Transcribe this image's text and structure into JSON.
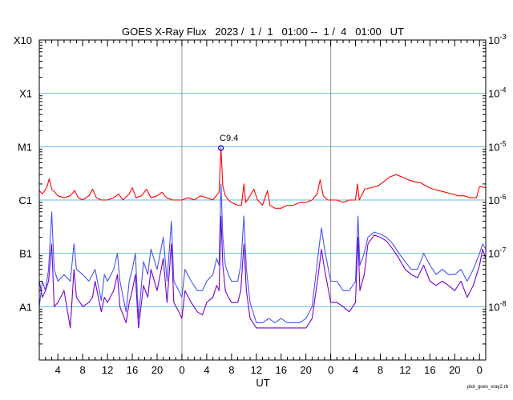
{
  "chart_data": {
    "type": "line",
    "title": "GOES X-Ray Flux   2023 /  1 /  1   01:00 --  1 /  4   01:00   UT",
    "xlabel": "UT",
    "credit": "plot_goes_xray2.rb",
    "x_range_hours": [
      0,
      72
    ],
    "x_tick_labels": [
      "4",
      "8",
      "12",
      "16",
      "20",
      "0",
      "4",
      "8",
      "12",
      "16",
      "20",
      "0",
      "4",
      "8",
      "12",
      "16",
      "20",
      "0"
    ],
    "day_boundaries_hours": [
      23,
      47
    ],
    "y_scale": "log",
    "ylim": [
      1e-09,
      0.001
    ],
    "y_left_labels": [
      {
        "label": "X10",
        "flux": 0.001
      },
      {
        "label": "X1",
        "flux": 0.0001
      },
      {
        "label": "M1",
        "flux": 1e-05
      },
      {
        "label": "C1",
        "flux": 1e-06
      },
      {
        "label": "B1",
        "flux": 1e-07
      },
      {
        "label": "A1",
        "flux": 1e-08
      }
    ],
    "y_right_labels": [
      {
        "base": "10",
        "exp": "-3",
        "flux": 0.001
      },
      {
        "base": "10",
        "exp": "-4",
        "flux": 0.0001
      },
      {
        "base": "10",
        "exp": "-5",
        "flux": 1e-05
      },
      {
        "base": "10",
        "exp": "-6",
        "flux": 1e-06
      },
      {
        "base": "10",
        "exp": "-7",
        "flux": 1e-07
      },
      {
        "base": "10",
        "exp": "-8",
        "flux": 1e-08
      }
    ],
    "peak": {
      "label": "C9.4",
      "hour": 29.3,
      "flux": 9.4e-06
    },
    "series": [
      {
        "color": "#ff0000",
        "points": [
          [
            0,
            1.5e-06
          ],
          [
            0.5,
            1.3e-06
          ],
          [
            1.2,
            1.7e-06
          ],
          [
            1.6,
            2.5e-06
          ],
          [
            2,
            1.6e-06
          ],
          [
            2.5,
            1.4e-06
          ],
          [
            3,
            1.2e-06
          ],
          [
            4,
            1.1e-06
          ],
          [
            5,
            1.2e-06
          ],
          [
            5.7,
            1.5e-06
          ],
          [
            6.3,
            1.1e-06
          ],
          [
            7,
            1e-06
          ],
          [
            8,
            1.2e-06
          ],
          [
            8.6,
            1.6e-06
          ],
          [
            9.2,
            1.1e-06
          ],
          [
            10,
            1e-06
          ],
          [
            11,
            1e-06
          ],
          [
            12,
            1.1e-06
          ],
          [
            12.8,
            1.3e-06
          ],
          [
            13.5,
            1e-06
          ],
          [
            14.5,
            1.3e-06
          ],
          [
            15,
            1.7e-06
          ],
          [
            15.6,
            1.1e-06
          ],
          [
            16.5,
            1.2e-06
          ],
          [
            17.3,
            1.6e-06
          ],
          [
            18,
            1.1e-06
          ],
          [
            19,
            1.2e-06
          ],
          [
            19.8,
            1.4e-06
          ],
          [
            20.5,
            1.1e-06
          ],
          [
            21.5,
            1e-06
          ],
          [
            22.5,
            1e-06
          ],
          [
            23,
            1e-06
          ],
          [
            24,
            1.1e-06
          ],
          [
            25,
            1e-06
          ],
          [
            26,
            1.2e-06
          ],
          [
            27,
            1.1e-06
          ],
          [
            28,
            1e-06
          ],
          [
            29,
            1.4e-06
          ],
          [
            29.3,
            9.4e-06
          ],
          [
            29.6,
            1.8e-06
          ],
          [
            30,
            1.2e-06
          ],
          [
            30.5,
            1e-06
          ],
          [
            31,
            9e-07
          ],
          [
            32,
            8e-07
          ],
          [
            32.6,
            8e-07
          ],
          [
            33,
            2e-06
          ],
          [
            33.3,
            9e-07
          ],
          [
            34,
            1.2e-06
          ],
          [
            34.6,
            1.6e-06
          ],
          [
            35.2,
            1e-06
          ],
          [
            36,
            8e-07
          ],
          [
            36.8,
            1.5e-06
          ],
          [
            37.2,
            8e-07
          ],
          [
            38,
            7e-07
          ],
          [
            39,
            7e-07
          ],
          [
            40,
            8e-07
          ],
          [
            41,
            8e-07
          ],
          [
            42,
            9e-07
          ],
          [
            43,
            9e-07
          ],
          [
            44,
            1e-06
          ],
          [
            44.8,
            1.3e-06
          ],
          [
            45.3,
            2.4e-06
          ],
          [
            45.8,
            1.2e-06
          ],
          [
            46.5,
            1e-06
          ],
          [
            47,
            1e-06
          ],
          [
            48,
            1e-06
          ],
          [
            49,
            9e-07
          ],
          [
            50,
            1e-06
          ],
          [
            51,
            1e-06
          ],
          [
            51.3,
            2e-06
          ],
          [
            51.6,
            1e-06
          ],
          [
            52.5,
            1.6e-06
          ],
          [
            53.5,
            1.7e-06
          ],
          [
            54.5,
            1.8e-06
          ],
          [
            55.5,
            2.2e-06
          ],
          [
            56.5,
            2.7e-06
          ],
          [
            57.5,
            3e-06
          ],
          [
            58.5,
            2.7e-06
          ],
          [
            59.5,
            2.4e-06
          ],
          [
            60.5,
            2.2e-06
          ],
          [
            61.5,
            2.1e-06
          ],
          [
            62.5,
            1.8e-06
          ],
          [
            63.5,
            1.6e-06
          ],
          [
            64.5,
            1.5e-06
          ],
          [
            65.5,
            1.4e-06
          ],
          [
            66.5,
            1.3e-06
          ],
          [
            67.5,
            1.2e-06
          ],
          [
            68.5,
            1.2e-06
          ],
          [
            69.5,
            1.1e-06
          ],
          [
            70.5,
            1.1e-06
          ],
          [
            71,
            1.8e-06
          ],
          [
            72,
            1.7e-06
          ]
        ]
      },
      {
        "color": "#4455ee",
        "points": [
          [
            0,
            1e-08
          ],
          [
            0.5,
            3e-08
          ],
          [
            1,
            2e-08
          ],
          [
            1.5,
            5e-08
          ],
          [
            2,
            6e-07
          ],
          [
            2.4,
            5e-08
          ],
          [
            3,
            3e-08
          ],
          [
            4,
            4e-08
          ],
          [
            5,
            3e-08
          ],
          [
            5.6,
            1.5e-07
          ],
          [
            6,
            5e-08
          ],
          [
            7,
            4e-08
          ],
          [
            8,
            3e-08
          ],
          [
            9,
            5e-08
          ],
          [
            10,
            1.3e-08
          ],
          [
            10.5,
            4e-08
          ],
          [
            11,
            3e-08
          ],
          [
            12,
            5e-08
          ],
          [
            12.6,
            1e-07
          ],
          [
            13,
            3e-08
          ],
          [
            14,
            8e-09
          ],
          [
            14.5,
            3e-08
          ],
          [
            15,
            5e-08
          ],
          [
            15.5,
            1e-07
          ],
          [
            16,
            6e-09
          ],
          [
            16.8,
            7e-08
          ],
          [
            17.5,
            4e-08
          ],
          [
            18,
            1.2e-07
          ],
          [
            19,
            5e-08
          ],
          [
            20,
            2e-07
          ],
          [
            20.6,
            3e-08
          ],
          [
            21.3,
            4e-07
          ],
          [
            21.7,
            3e-08
          ],
          [
            22.5,
            2e-08
          ],
          [
            23,
            1.5e-08
          ],
          [
            23.5,
            5e-08
          ],
          [
            24.5,
            3e-08
          ],
          [
            25.5,
            2e-08
          ],
          [
            26.3,
            2e-08
          ],
          [
            27,
            3e-08
          ],
          [
            28,
            4e-08
          ],
          [
            28.6,
            8e-08
          ],
          [
            29,
            6e-08
          ],
          [
            29.3,
            2e-06
          ],
          [
            29.6,
            2e-07
          ],
          [
            30,
            6e-08
          ],
          [
            30.5,
            4e-08
          ],
          [
            31,
            3e-08
          ],
          [
            32,
            3e-08
          ],
          [
            32.5,
            6e-08
          ],
          [
            33,
            5e-07
          ],
          [
            33.4,
            5e-08
          ],
          [
            34,
            1.2e-08
          ],
          [
            35,
            5e-09
          ],
          [
            36,
            5e-09
          ],
          [
            37,
            6e-09
          ],
          [
            38,
            5e-09
          ],
          [
            39,
            6e-09
          ],
          [
            40,
            5e-09
          ],
          [
            41,
            5e-09
          ],
          [
            42,
            5e-09
          ],
          [
            43,
            6e-09
          ],
          [
            44,
            1e-08
          ],
          [
            45,
            1e-07
          ],
          [
            45.5,
            3e-07
          ],
          [
            46,
            1.2e-07
          ],
          [
            46.5,
            6e-08
          ],
          [
            47,
            3e-08
          ],
          [
            48,
            3e-08
          ],
          [
            49,
            2e-08
          ],
          [
            50,
            2e-08
          ],
          [
            51,
            3e-08
          ],
          [
            51.4,
            5e-07
          ],
          [
            51.7,
            6e-08
          ],
          [
            52.4,
            1e-07
          ],
          [
            53,
            2e-07
          ],
          [
            54,
            2.5e-07
          ],
          [
            55,
            2.3e-07
          ],
          [
            56,
            2e-07
          ],
          [
            57,
            1.5e-07
          ],
          [
            58,
            1e-07
          ],
          [
            59,
            7e-08
          ],
          [
            60,
            5e-08
          ],
          [
            61,
            5e-08
          ],
          [
            62,
            1e-07
          ],
          [
            63,
            6e-08
          ],
          [
            64,
            4e-08
          ],
          [
            65,
            5e-08
          ],
          [
            66,
            4e-08
          ],
          [
            67,
            4e-08
          ],
          [
            68,
            5e-08
          ],
          [
            69,
            3e-08
          ],
          [
            70,
            5e-08
          ],
          [
            71,
            1e-07
          ],
          [
            71.5,
            1.5e-07
          ],
          [
            72,
            1.2e-07
          ]
        ]
      },
      {
        "color": "#7700cc",
        "points": [
          [
            0,
            3e-08
          ],
          [
            0.5,
            1.5e-08
          ],
          [
            1,
            2e-08
          ],
          [
            1.5,
            3e-08
          ],
          [
            2,
            1.5e-07
          ],
          [
            2.4,
            1e-08
          ],
          [
            3,
            1.2e-08
          ],
          [
            4,
            2e-08
          ],
          [
            5,
            4e-09
          ],
          [
            5.6,
            5e-08
          ],
          [
            6,
            1.5e-08
          ],
          [
            7,
            1e-08
          ],
          [
            8,
            1.2e-08
          ],
          [
            8.6,
            1.5e-08
          ],
          [
            9,
            3e-08
          ],
          [
            10,
            8e-09
          ],
          [
            10.5,
            1.5e-08
          ],
          [
            11,
            1.2e-08
          ],
          [
            12,
            2e-08
          ],
          [
            12.6,
            4e-08
          ],
          [
            13,
            1e-08
          ],
          [
            14,
            5e-09
          ],
          [
            14.5,
            1.2e-08
          ],
          [
            15,
            2e-08
          ],
          [
            15.5,
            4e-08
          ],
          [
            16,
            4e-09
          ],
          [
            16.8,
            2.5e-08
          ],
          [
            17.5,
            1.5e-08
          ],
          [
            18,
            5e-08
          ],
          [
            19,
            2e-08
          ],
          [
            20,
            8e-08
          ],
          [
            20.6,
            1.2e-08
          ],
          [
            21.3,
            1.5e-07
          ],
          [
            21.7,
            1.2e-08
          ],
          [
            22.5,
            8e-09
          ],
          [
            23,
            6e-09
          ],
          [
            23.5,
            2e-08
          ],
          [
            24.5,
            1.2e-08
          ],
          [
            25.5,
            8e-09
          ],
          [
            26.3,
            7e-09
          ],
          [
            27,
            1.2e-08
          ],
          [
            28,
            1.5e-08
          ],
          [
            28.6,
            2.5e-08
          ],
          [
            29,
            2e-08
          ],
          [
            29.3,
            5e-07
          ],
          [
            29.6,
            6e-08
          ],
          [
            30,
            2e-08
          ],
          [
            30.5,
            1.5e-08
          ],
          [
            31,
            1.2e-08
          ],
          [
            32,
            1.2e-08
          ],
          [
            32.5,
            2e-08
          ],
          [
            33,
            1.5e-07
          ],
          [
            33.4,
            2e-08
          ],
          [
            34,
            6e-09
          ],
          [
            35,
            4e-09
          ],
          [
            36,
            4e-09
          ],
          [
            37,
            4e-09
          ],
          [
            38,
            4e-09
          ],
          [
            39,
            4e-09
          ],
          [
            40,
            4e-09
          ],
          [
            41,
            4e-09
          ],
          [
            42,
            4e-09
          ],
          [
            43,
            4e-09
          ],
          [
            44,
            6e-09
          ],
          [
            45,
            4e-08
          ],
          [
            45.5,
            1.2e-07
          ],
          [
            46,
            5e-08
          ],
          [
            46.5,
            2.5e-08
          ],
          [
            47,
            1.2e-08
          ],
          [
            48,
            1.2e-08
          ],
          [
            49,
            1e-08
          ],
          [
            50,
            8e-09
          ],
          [
            51,
            1.2e-08
          ],
          [
            51.4,
            2e-07
          ],
          [
            51.7,
            2e-08
          ],
          [
            52.4,
            4e-08
          ],
          [
            53,
            1.5e-07
          ],
          [
            54,
            2.2e-07
          ],
          [
            55,
            2e-07
          ],
          [
            56,
            1.7e-07
          ],
          [
            57,
            1.2e-07
          ],
          [
            58,
            8e-08
          ],
          [
            59,
            5e-08
          ],
          [
            60,
            4e-08
          ],
          [
            61,
            3.5e-08
          ],
          [
            62,
            6e-08
          ],
          [
            63,
            3e-08
          ],
          [
            64,
            2.5e-08
          ],
          [
            65,
            3e-08
          ],
          [
            66,
            2.5e-08
          ],
          [
            67,
            2e-08
          ],
          [
            68,
            3e-08
          ],
          [
            69,
            1.5e-08
          ],
          [
            70,
            2.5e-08
          ],
          [
            71,
            6e-08
          ],
          [
            71.5,
            1.2e-07
          ],
          [
            72,
            8e-08
          ]
        ]
      }
    ]
  }
}
